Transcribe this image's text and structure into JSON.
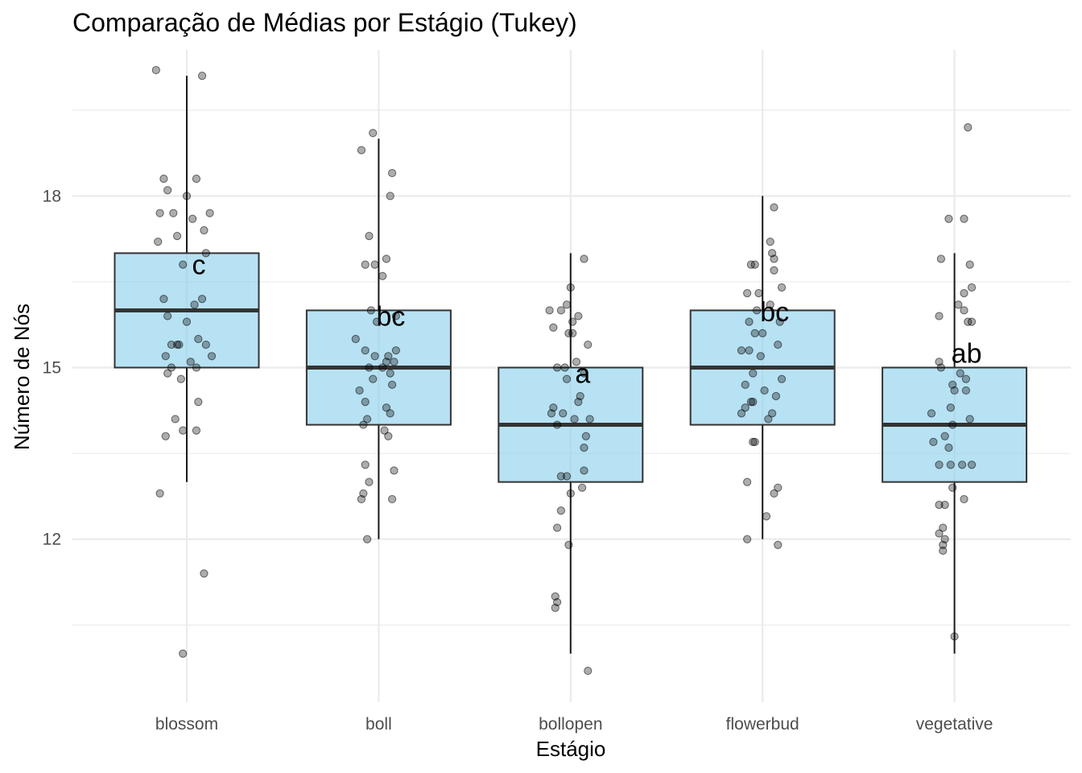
{
  "chart_data": {
    "type": "box",
    "title": "Comparação de Médias por Estágio (Tukey)",
    "xlabel": "Estágio",
    "ylabel": "Número de Nós",
    "categories": [
      "blossom",
      "boll",
      "bollopen",
      "flowerbud",
      "vegetative"
    ],
    "ylim": [
      9.5,
      20.9
    ],
    "yticks": [
      12,
      15,
      18
    ],
    "grid": true,
    "box_fill": "#87CEEB",
    "box_stroke": "#333333",
    "boxes": [
      {
        "category": "blossom",
        "min": 13,
        "q1": 15,
        "median": 16,
        "q3": 17,
        "max": 20.1,
        "letter": "c",
        "letter_y": 16.8
      },
      {
        "category": "boll",
        "min": 12,
        "q1": 14,
        "median": 15,
        "q3": 16,
        "max": 19.0,
        "letter": "bc",
        "letter_y": 15.9
      },
      {
        "category": "bollopen",
        "min": 10,
        "q1": 13,
        "median": 14,
        "q3": 15,
        "max": 17.0,
        "letter": "a",
        "letter_y": 14.9
      },
      {
        "category": "flowerbud",
        "min": 12,
        "q1": 14,
        "median": 15,
        "q3": 16,
        "max": 18.0,
        "letter": "bc",
        "letter_y": 15.98
      },
      {
        "category": "vegetative",
        "min": 10,
        "q1": 13,
        "median": 14,
        "q3": 15,
        "max": 17.0,
        "letter": "ab",
        "letter_y": 15.25
      }
    ],
    "points": [
      {
        "category": "blossom",
        "values": [
          20.2,
          20.1,
          18.3,
          18.3,
          18.1,
          18.0,
          17.7,
          17.7,
          17.7,
          17.6,
          17.4,
          17.3,
          17.2,
          17.0,
          16.8,
          16.2,
          16.2,
          16.1,
          15.9,
          15.8,
          15.5,
          15.4,
          15.4,
          15.4,
          15.4,
          15.2,
          15.2,
          15.1,
          15.0,
          15.0,
          14.9,
          14.8,
          14.4,
          14.1,
          13.9,
          13.9,
          13.8,
          12.8,
          11.4,
          10.0
        ],
        "jitter": [
          -0.16,
          0.08,
          -0.12,
          0.05,
          -0.1,
          0.0,
          -0.14,
          0.12,
          -0.07,
          0.03,
          0.09,
          -0.05,
          -0.15,
          0.1,
          -0.02,
          0.08,
          -0.12,
          0.04,
          -0.1,
          0.0,
          0.06,
          -0.05,
          -0.08,
          0.1,
          -0.04,
          0.13,
          -0.11,
          0.02,
          -0.08,
          0.05,
          -0.1,
          -0.03,
          0.06,
          -0.06,
          -0.02,
          0.05,
          -0.11,
          -0.14,
          0.09,
          -0.02
        ]
      },
      {
        "category": "boll",
        "values": [
          19.1,
          18.8,
          18.4,
          18.0,
          17.3,
          16.9,
          16.8,
          16.8,
          16.6,
          16.0,
          15.9,
          15.8,
          15.5,
          15.3,
          15.3,
          15.2,
          15.2,
          15.1,
          15.1,
          15.0,
          15.0,
          14.9,
          14.8,
          14.7,
          14.6,
          14.4,
          14.3,
          14.2,
          14.1,
          14.0,
          13.9,
          13.8,
          13.3,
          13.2,
          13.0,
          12.8,
          12.7,
          12.7,
          12.0
        ],
        "jitter": [
          -0.03,
          -0.09,
          0.07,
          0.06,
          -0.05,
          0.04,
          -0.07,
          -0.02,
          0.02,
          -0.04,
          0.09,
          -0.01,
          -0.12,
          -0.07,
          0.09,
          0.05,
          -0.02,
          0.04,
          0.08,
          -0.05,
          0.02,
          0.06,
          -0.03,
          0.07,
          -0.1,
          -0.07,
          0.04,
          0.06,
          -0.06,
          -0.08,
          0.03,
          0.05,
          -0.07,
          0.08,
          -0.05,
          -0.08,
          0.07,
          -0.09,
          -0.06
        ]
      },
      {
        "category": "bollopen",
        "values": [
          16.9,
          16.4,
          16.1,
          16.0,
          16.0,
          15.9,
          15.8,
          15.7,
          15.6,
          15.6,
          15.4,
          15.1,
          15.0,
          15.0,
          14.9,
          14.8,
          14.5,
          14.4,
          14.3,
          14.2,
          14.2,
          14.1,
          14.1,
          14.0,
          13.8,
          13.6,
          13.2,
          13.1,
          13.1,
          12.9,
          12.8,
          12.5,
          12.2,
          11.9,
          11.0,
          10.9,
          10.8,
          9.7
        ],
        "jitter": [
          0.07,
          0.0,
          -0.02,
          -0.11,
          -0.05,
          0.04,
          0.01,
          -0.09,
          -0.01,
          0.01,
          0.09,
          0.03,
          -0.07,
          -0.03,
          0.07,
          -0.02,
          0.05,
          0.04,
          -0.09,
          -0.1,
          -0.04,
          0.1,
          0.02,
          -0.07,
          0.08,
          0.07,
          0.07,
          -0.02,
          -0.05,
          0.06,
          0.0,
          -0.05,
          -0.07,
          -0.01,
          -0.08,
          -0.07,
          -0.08,
          0.09
        ]
      },
      {
        "category": "flowerbud",
        "values": [
          17.8,
          17.2,
          17.0,
          16.9,
          16.8,
          16.8,
          16.7,
          16.4,
          16.3,
          16.3,
          16.1,
          16.0,
          15.8,
          15.8,
          15.6,
          15.6,
          15.4,
          15.3,
          15.3,
          15.2,
          14.9,
          14.8,
          14.7,
          14.6,
          14.5,
          14.4,
          14.4,
          14.3,
          14.2,
          14.2,
          14.1,
          13.7,
          13.7,
          13.0,
          12.9,
          12.8,
          12.4,
          12.0,
          11.9
        ],
        "jitter": [
          0.06,
          0.04,
          0.05,
          0.06,
          -0.04,
          -0.06,
          0.06,
          0.1,
          -0.08,
          -0.02,
          0.04,
          -0.03,
          0.09,
          -0.07,
          0.0,
          -0.04,
          0.08,
          -0.07,
          -0.11,
          -0.01,
          -0.05,
          0.1,
          -0.09,
          0.01,
          0.07,
          -0.05,
          -0.06,
          -0.09,
          0.05,
          -0.11,
          0.03,
          -0.04,
          -0.05,
          -0.08,
          0.08,
          0.06,
          0.02,
          -0.08,
          0.08
        ]
      },
      {
        "category": "vegetative",
        "values": [
          19.2,
          17.6,
          17.6,
          16.9,
          16.8,
          16.4,
          16.3,
          16.1,
          16.0,
          15.9,
          15.8,
          15.8,
          15.1,
          15.0,
          14.9,
          14.8,
          14.7,
          14.6,
          14.6,
          14.3,
          14.2,
          14.1,
          14.0,
          13.8,
          13.7,
          13.6,
          13.3,
          13.3,
          13.3,
          13.3,
          12.9,
          12.7,
          12.6,
          12.6,
          12.2,
          12.1,
          12.0,
          11.9,
          11.8,
          10.3
        ],
        "jitter": [
          0.07,
          -0.03,
          0.05,
          -0.07,
          0.08,
          0.09,
          0.05,
          0.02,
          0.05,
          -0.08,
          0.07,
          0.09,
          -0.08,
          -0.07,
          0.03,
          0.06,
          -0.01,
          0.0,
          0.06,
          -0.02,
          -0.12,
          0.08,
          -0.01,
          -0.05,
          -0.11,
          -0.03,
          -0.02,
          0.04,
          -0.08,
          0.09,
          -0.01,
          0.05,
          -0.05,
          -0.08,
          -0.06,
          -0.08,
          -0.05,
          -0.06,
          -0.06,
          -0.0
        ]
      }
    ]
  }
}
